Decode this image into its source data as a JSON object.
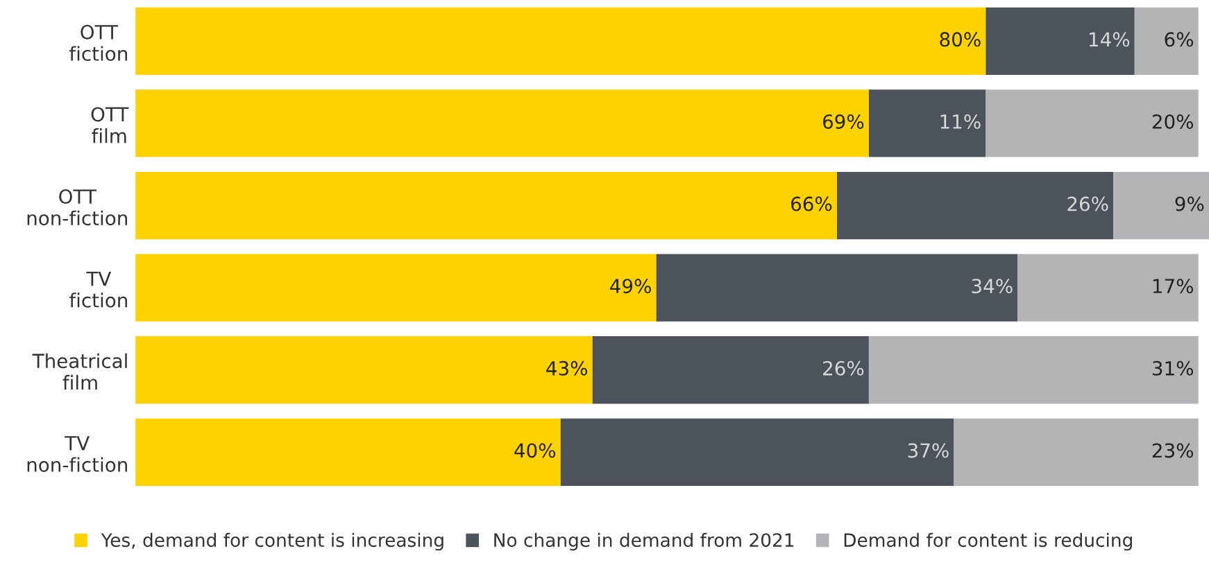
{
  "chart_data": {
    "type": "bar",
    "orientation": "horizontal",
    "stacked": true,
    "legend": "bottom",
    "grid": false,
    "categories": [
      "OTT\nfiction",
      "OTT\nfilm",
      "OTT\nnon-fiction",
      "TV\nfiction",
      "Theatrical\nfilm",
      "TV\nnon-fiction"
    ],
    "series": [
      {
        "name": "Yes, demand for content is increasing",
        "color": "#ffd200",
        "values": [
          80,
          69,
          66,
          49,
          43,
          40
        ],
        "value_labels": [
          "80%",
          "69%",
          "66%",
          "49%",
          "43%",
          "40%"
        ]
      },
      {
        "name": "No change in demand from 2021",
        "color": "#4c535d",
        "values": [
          14,
          11,
          26,
          34,
          26,
          37
        ],
        "value_labels": [
          "14%",
          "11%",
          "26%",
          "34%",
          "26%",
          "37%"
        ]
      },
      {
        "name": "Demand for content is reducing",
        "color": "#b4b4b6",
        "values": [
          6,
          20,
          9,
          17,
          31,
          23
        ],
        "value_labels": [
          "6%",
          "20%",
          "9%",
          "17%",
          "31%",
          "23%"
        ]
      }
    ]
  }
}
